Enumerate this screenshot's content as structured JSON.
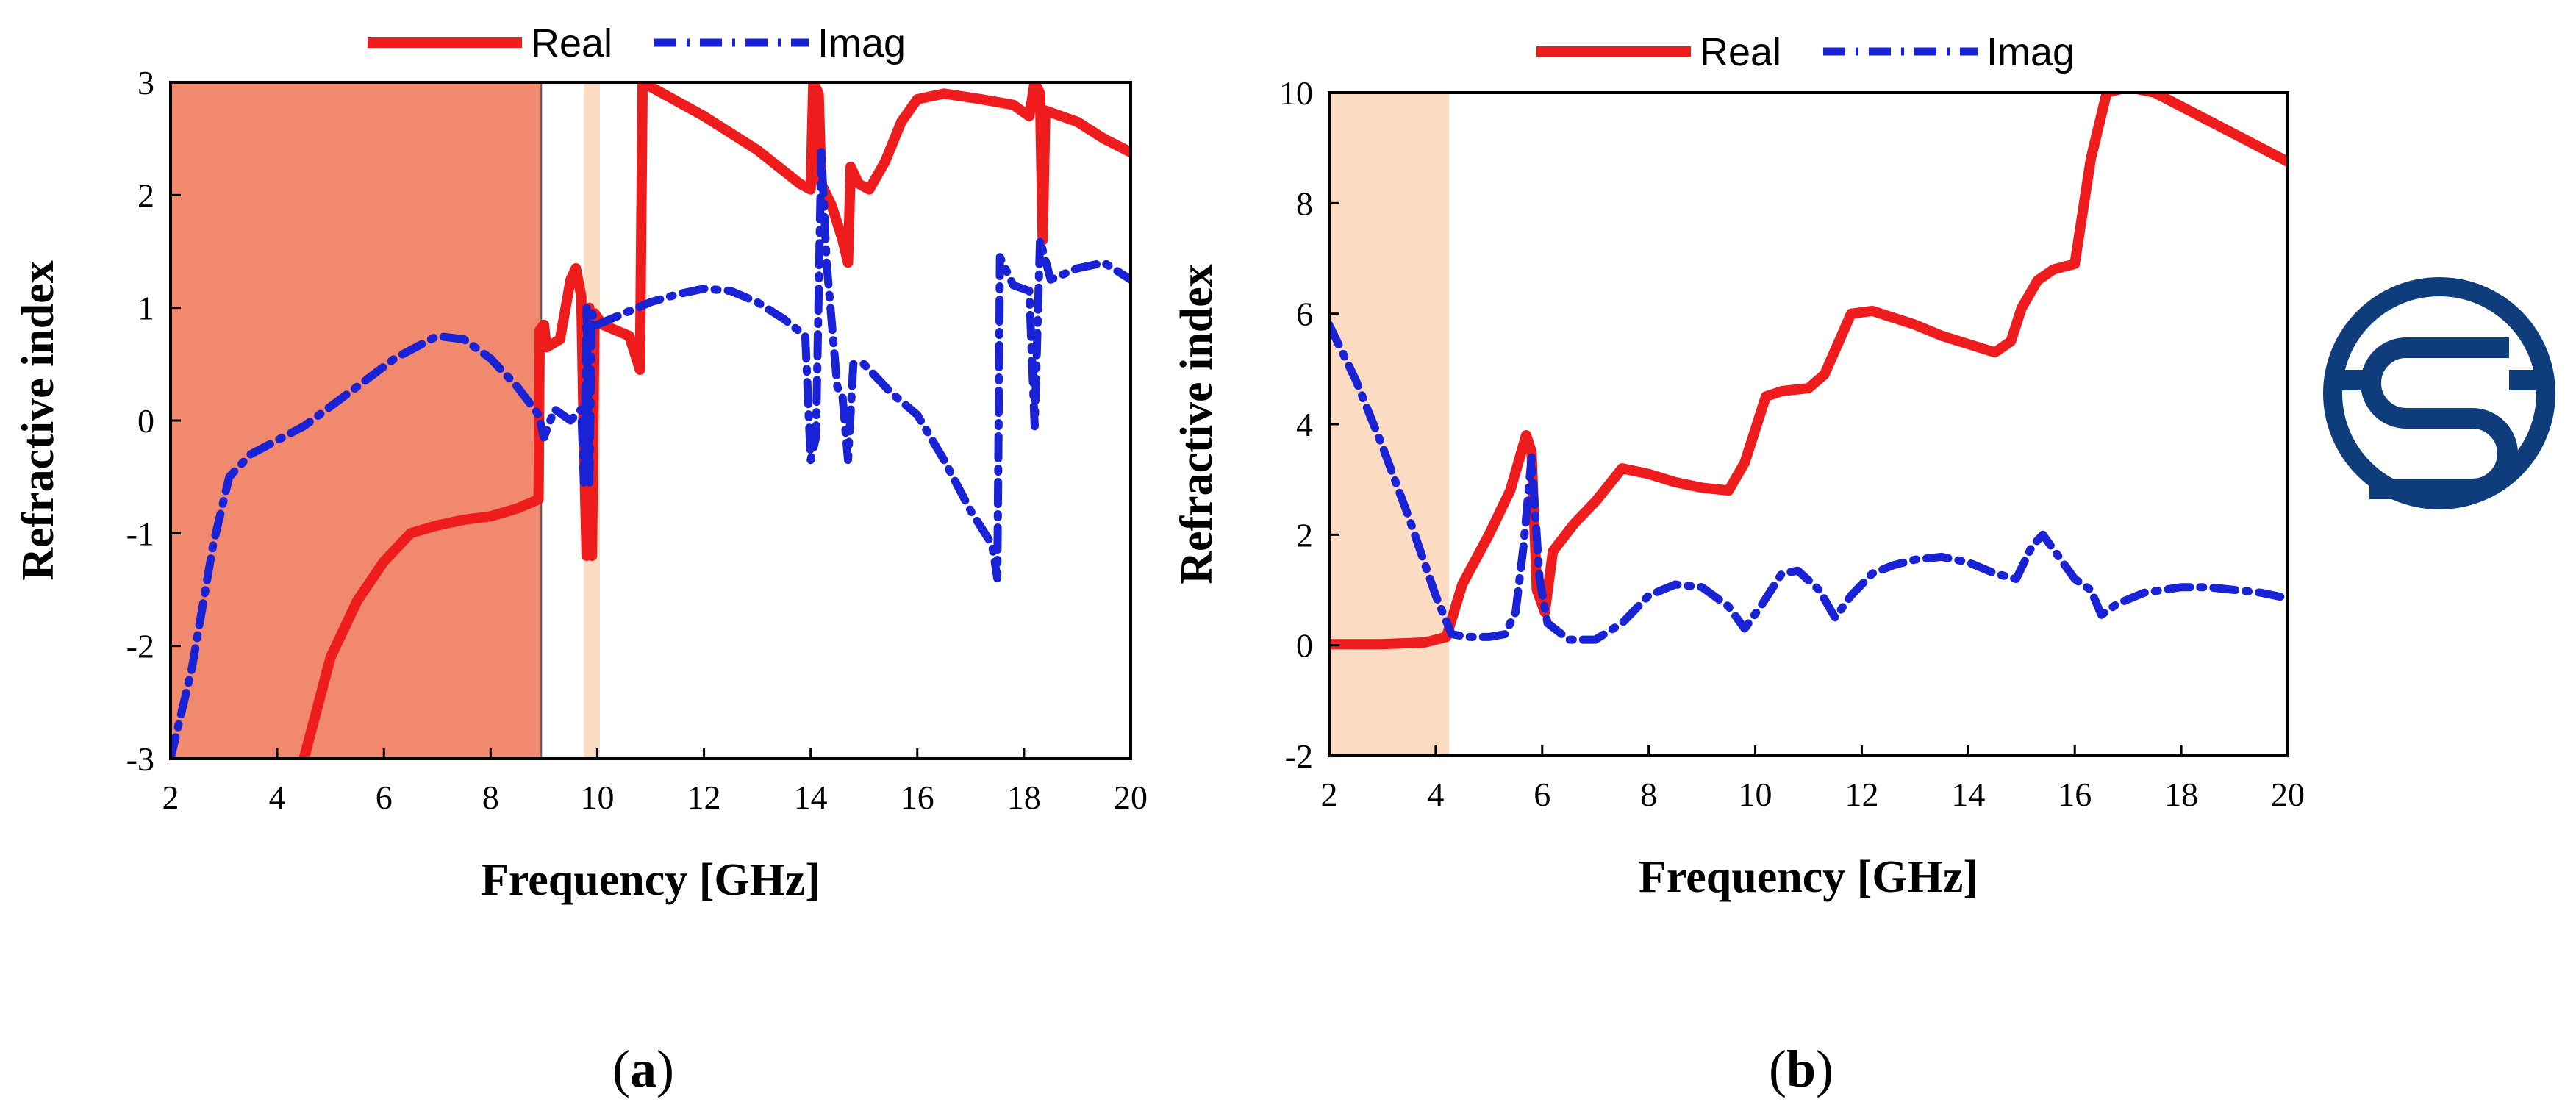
{
  "colors": {
    "real": "#ee1c1c",
    "imag": "#1a22d6",
    "region_dark": "#f0896d",
    "region_light": "#fbdcc2",
    "logo": "#0f3d7c"
  },
  "logo": {
    "icon": "journal-logo-icon"
  },
  "chart_data": [
    {
      "type": "line",
      "panel": "a",
      "panel_label": {
        "open": "(",
        "letter": "a",
        "close": ")"
      },
      "xlabel": "Frequency [GHz]",
      "ylabel": "Refractive index",
      "xlim": [
        2,
        20
      ],
      "ylim": [
        -3,
        3
      ],
      "xticks": [
        "2",
        "4",
        "6",
        "8",
        "10",
        "12",
        "14",
        "16",
        "18",
        "20"
      ],
      "yticks": [
        "-3",
        "-2",
        "-1",
        "0",
        "1",
        "2",
        "3"
      ],
      "legend": {
        "position": "top",
        "entries": [
          "Real",
          "Imag"
        ]
      },
      "shaded_regions": [
        {
          "from": 2.0,
          "to": 8.95,
          "style": "dark"
        },
        {
          "from": 9.75,
          "to": 10.05,
          "style": "light"
        }
      ],
      "series": [
        {
          "name": "Real",
          "style": "solid",
          "points": [
            [
              4.5,
              -3
            ],
            [
              5,
              -2.1
            ],
            [
              5.5,
              -1.6
            ],
            [
              6,
              -1.25
            ],
            [
              6.5,
              -1.0
            ],
            [
              7,
              -0.93
            ],
            [
              7.5,
              -0.88
            ],
            [
              8,
              -0.85
            ],
            [
              8.5,
              -0.78
            ],
            [
              8.9,
              -0.7
            ],
            [
              8.92,
              0.8
            ],
            [
              9.0,
              0.85
            ],
            [
              9.05,
              0.65
            ],
            [
              9.3,
              0.72
            ],
            [
              9.5,
              1.25
            ],
            [
              9.6,
              1.35
            ],
            [
              9.7,
              1.1
            ],
            [
              9.75,
              -0.2
            ],
            [
              9.8,
              -1.2
            ],
            [
              9.85,
              1.0
            ],
            [
              9.9,
              -1.2
            ],
            [
              9.95,
              0.95
            ],
            [
              10.1,
              0.85
            ],
            [
              10.6,
              0.75
            ],
            [
              10.8,
              0.45
            ],
            [
              10.85,
              3.0
            ],
            [
              12,
              2.7
            ],
            [
              13,
              2.4
            ],
            [
              13.8,
              2.1
            ],
            [
              14.0,
              2.05
            ],
            [
              14.05,
              3.0
            ],
            [
              14.15,
              2.9
            ],
            [
              14.2,
              2.1
            ],
            [
              14.4,
              1.9
            ],
            [
              14.6,
              1.6
            ],
            [
              14.7,
              1.4
            ],
            [
              14.75,
              2.25
            ],
            [
              14.9,
              2.1
            ],
            [
              15.1,
              2.05
            ],
            [
              15.4,
              2.3
            ],
            [
              15.7,
              2.65
            ],
            [
              16,
              2.85
            ],
            [
              16.5,
              2.9
            ],
            [
              17.2,
              2.85
            ],
            [
              17.8,
              2.8
            ],
            [
              18.1,
              2.7
            ],
            [
              18.2,
              3.0
            ],
            [
              18.3,
              2.9
            ],
            [
              18.35,
              1.6
            ],
            [
              18.4,
              2.75
            ],
            [
              19,
              2.65
            ],
            [
              19.5,
              2.5
            ],
            [
              20,
              2.38
            ]
          ]
        },
        {
          "name": "Imag",
          "style": "dashdot",
          "points": [
            [
              2.0,
              -3
            ],
            [
              2.4,
              -2.2
            ],
            [
              2.8,
              -1.1
            ],
            [
              3.1,
              -0.5
            ],
            [
              3.5,
              -0.3
            ],
            [
              4.5,
              -0.05
            ],
            [
              5.5,
              0.3
            ],
            [
              6.2,
              0.55
            ],
            [
              7.0,
              0.75
            ],
            [
              7.5,
              0.72
            ],
            [
              8.0,
              0.55
            ],
            [
              8.5,
              0.3
            ],
            [
              8.9,
              0.05
            ],
            [
              9.0,
              -0.15
            ],
            [
              9.2,
              0.1
            ],
            [
              9.5,
              0.0
            ],
            [
              9.7,
              0.1
            ],
            [
              9.75,
              -0.55
            ],
            [
              9.8,
              1.0
            ],
            [
              9.85,
              -0.55
            ],
            [
              9.9,
              0.95
            ],
            [
              10.0,
              0.85
            ],
            [
              10.5,
              0.95
            ],
            [
              11,
              1.05
            ],
            [
              11.5,
              1.12
            ],
            [
              12,
              1.17
            ],
            [
              12.5,
              1.15
            ],
            [
              13,
              1.05
            ],
            [
              13.5,
              0.9
            ],
            [
              13.9,
              0.75
            ],
            [
              14.0,
              -0.35
            ],
            [
              14.1,
              -0.15
            ],
            [
              14.2,
              2.4
            ],
            [
              14.3,
              1.4
            ],
            [
              14.5,
              0.3
            ],
            [
              14.6,
              0.2
            ],
            [
              14.7,
              -0.35
            ],
            [
              14.8,
              0.5
            ],
            [
              15.0,
              0.5
            ],
            [
              15.5,
              0.25
            ],
            [
              16,
              0.05
            ],
            [
              16.5,
              -0.35
            ],
            [
              17,
              -0.8
            ],
            [
              17.4,
              -1.1
            ],
            [
              17.5,
              -1.4
            ],
            [
              17.55,
              1.45
            ],
            [
              17.8,
              1.2
            ],
            [
              18.1,
              1.15
            ],
            [
              18.2,
              -0.05
            ],
            [
              18.3,
              1.6
            ],
            [
              18.5,
              1.25
            ],
            [
              19,
              1.35
            ],
            [
              19.5,
              1.4
            ],
            [
              20,
              1.25
            ]
          ]
        }
      ]
    },
    {
      "type": "line",
      "panel": "b",
      "panel_label": {
        "open": "(",
        "letter": "b",
        "close": ")"
      },
      "xlabel": "Frequency [GHz]",
      "ylabel": "Refractive index",
      "xlim": [
        2,
        20
      ],
      "ylim": [
        -2,
        10
      ],
      "xticks": [
        "2",
        "4",
        "6",
        "8",
        "10",
        "12",
        "14",
        "16",
        "18",
        "20"
      ],
      "yticks": [
        "-2",
        "0",
        "2",
        "4",
        "6",
        "8",
        "10"
      ],
      "legend": {
        "position": "top",
        "entries": [
          "Real",
          "Imag"
        ]
      },
      "shaded_regions": [
        {
          "from": 2.0,
          "to": 4.25,
          "style": "light"
        }
      ],
      "series": [
        {
          "name": "Real",
          "style": "solid",
          "points": [
            [
              2,
              0.02
            ],
            [
              3,
              0.02
            ],
            [
              3.8,
              0.05
            ],
            [
              4.2,
              0.15
            ],
            [
              4.5,
              1.1
            ],
            [
              5,
              2.0
            ],
            [
              5.4,
              2.8
            ],
            [
              5.7,
              3.8
            ],
            [
              5.8,
              3.5
            ],
            [
              5.9,
              1.0
            ],
            [
              6.05,
              0.6
            ],
            [
              6.2,
              1.7
            ],
            [
              6.6,
              2.2
            ],
            [
              7,
              2.6
            ],
            [
              7.5,
              3.2
            ],
            [
              8,
              3.1
            ],
            [
              8.5,
              2.95
            ],
            [
              9,
              2.85
            ],
            [
              9.5,
              2.8
            ],
            [
              9.8,
              3.3
            ],
            [
              10.2,
              4.5
            ],
            [
              10.5,
              4.6
            ],
            [
              11,
              4.65
            ],
            [
              11.3,
              4.9
            ],
            [
              11.8,
              6.0
            ],
            [
              12.2,
              6.05
            ],
            [
              13,
              5.8
            ],
            [
              13.5,
              5.6
            ],
            [
              14,
              5.45
            ],
            [
              14.5,
              5.3
            ],
            [
              14.8,
              5.5
            ],
            [
              15,
              6.1
            ],
            [
              15.3,
              6.6
            ],
            [
              15.6,
              6.8
            ],
            [
              16,
              6.9
            ],
            [
              16.3,
              8.8
            ],
            [
              16.6,
              10
            ],
            [
              17,
              10.1
            ],
            [
              17.5,
              10.0
            ],
            [
              18.5,
              9.5
            ],
            [
              19.5,
              9.0
            ],
            [
              20,
              8.75
            ]
          ]
        },
        {
          "name": "Imag",
          "style": "dashdot",
          "points": [
            [
              2,
              5.8
            ],
            [
              2.5,
              4.8
            ],
            [
              3,
              3.6
            ],
            [
              3.5,
              2.3
            ],
            [
              4,
              0.9
            ],
            [
              4.3,
              0.2
            ],
            [
              4.6,
              0.15
            ],
            [
              5,
              0.15
            ],
            [
              5.3,
              0.2
            ],
            [
              5.5,
              0.6
            ],
            [
              5.65,
              1.8
            ],
            [
              5.8,
              3.4
            ],
            [
              5.95,
              1.2
            ],
            [
              6.1,
              0.4
            ],
            [
              6.5,
              0.1
            ],
            [
              7,
              0.1
            ],
            [
              7.5,
              0.4
            ],
            [
              8,
              0.9
            ],
            [
              8.5,
              1.1
            ],
            [
              9,
              1.05
            ],
            [
              9.5,
              0.7
            ],
            [
              9.8,
              0.3
            ],
            [
              10.1,
              0.7
            ],
            [
              10.5,
              1.3
            ],
            [
              10.8,
              1.35
            ],
            [
              11.2,
              1.0
            ],
            [
              11.5,
              0.5
            ],
            [
              11.8,
              0.9
            ],
            [
              12.2,
              1.3
            ],
            [
              12.6,
              1.45
            ],
            [
              13,
              1.55
            ],
            [
              13.5,
              1.6
            ],
            [
              14,
              1.5
            ],
            [
              14.5,
              1.3
            ],
            [
              14.9,
              1.2
            ],
            [
              15.2,
              1.8
            ],
            [
              15.4,
              2.0
            ],
            [
              15.7,
              1.6
            ],
            [
              16,
              1.2
            ],
            [
              16.3,
              1.0
            ],
            [
              16.5,
              0.55
            ],
            [
              16.8,
              0.75
            ],
            [
              17.3,
              0.95
            ],
            [
              18,
              1.05
            ],
            [
              18.5,
              1.05
            ],
            [
              19,
              1.0
            ],
            [
              19.5,
              0.95
            ],
            [
              20,
              0.85
            ]
          ]
        }
      ]
    }
  ]
}
